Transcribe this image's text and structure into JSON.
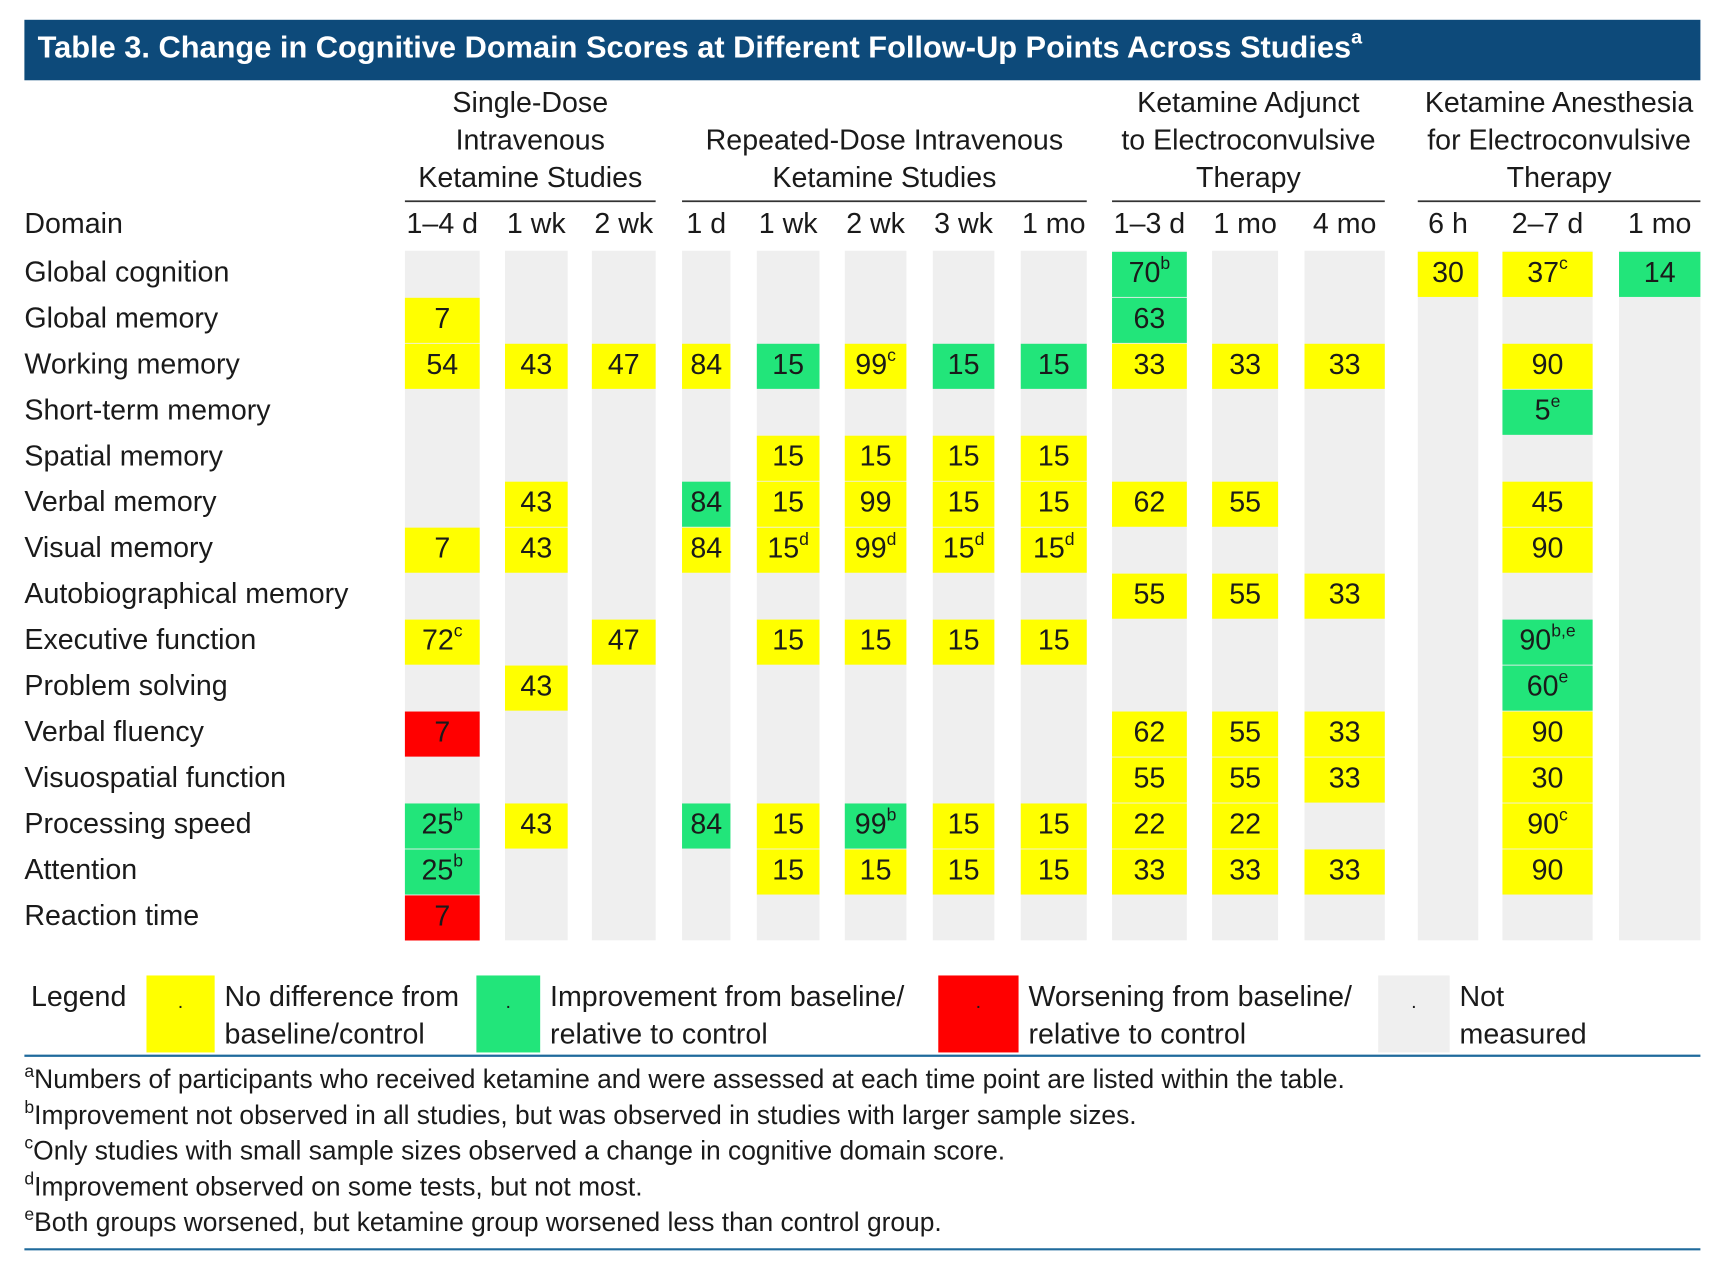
{
  "title": {
    "text": "Table 3. Change in Cognitive Domain Scores at Different Follow-Up Points Across Studies",
    "sup": "a"
  },
  "table": {
    "domain_header": "Domain",
    "groups": [
      {
        "lines": [
          "Single-Dose",
          "Intravenous",
          "Ketamine Studies"
        ],
        "columns": [
          "1–4 d",
          "1 wk",
          "2 wk"
        ]
      },
      {
        "lines": [
          "Repeated-Dose Intravenous",
          "Ketamine Studies"
        ],
        "columns": [
          "1 d",
          "1 wk",
          "2 wk",
          "3 wk",
          "1 mo"
        ]
      },
      {
        "lines": [
          "Ketamine Adjunct",
          "to Electroconvulsive",
          "Therapy"
        ],
        "columns": [
          "1–3 d",
          "1 mo",
          "4 mo"
        ]
      },
      {
        "lines": [
          "Ketamine Anesthesia",
          "for Electroconvulsive",
          "Therapy"
        ],
        "columns": [
          "6 h",
          "2–7 d",
          "1 mo"
        ]
      }
    ],
    "rows": [
      {
        "domain": "Global cognition",
        "cells": [
          null,
          null,
          null,
          null,
          null,
          null,
          null,
          null,
          {
            "value": 70,
            "sup": "b",
            "color": "#22e57a"
          },
          null,
          null,
          {
            "value": 30,
            "color": "#ffff00"
          },
          {
            "value": 37,
            "sup": "c",
            "color": "#ffff00"
          },
          {
            "value": 14,
            "color": "#22e57a"
          }
        ]
      },
      {
        "domain": "Global memory",
        "cells": [
          {
            "value": 7,
            "color": "#ffff00"
          },
          null,
          null,
          null,
          null,
          null,
          null,
          null,
          {
            "value": 63,
            "color": "#22e57a"
          },
          null,
          null,
          null,
          null,
          null
        ]
      },
      {
        "domain": "Working memory",
        "cells": [
          {
            "value": 54,
            "color": "#ffff00"
          },
          {
            "value": 43,
            "color": "#ffff00"
          },
          {
            "value": 47,
            "color": "#ffff00"
          },
          {
            "value": 84,
            "color": "#ffff00"
          },
          {
            "value": 15,
            "color": "#22e57a"
          },
          {
            "value": 99,
            "sup": "c",
            "color": "#ffff00"
          },
          {
            "value": 15,
            "color": "#22e57a"
          },
          {
            "value": 15,
            "color": "#22e57a"
          },
          {
            "value": 33,
            "color": "#ffff00"
          },
          {
            "value": 33,
            "color": "#ffff00"
          },
          {
            "value": 33,
            "color": "#ffff00"
          },
          null,
          {
            "value": 90,
            "color": "#ffff00"
          },
          null
        ]
      },
      {
        "domain": "Short-term memory",
        "cells": [
          null,
          null,
          null,
          null,
          null,
          null,
          null,
          null,
          null,
          null,
          null,
          null,
          {
            "value": 5,
            "sup": "e",
            "color": "#22e57a"
          },
          null
        ]
      },
      {
        "domain": "Spatial memory",
        "cells": [
          null,
          null,
          null,
          null,
          {
            "value": 15,
            "color": "#ffff00"
          },
          {
            "value": 15,
            "color": "#ffff00"
          },
          {
            "value": 15,
            "color": "#ffff00"
          },
          {
            "value": 15,
            "color": "#ffff00"
          },
          null,
          null,
          null,
          null,
          null,
          null
        ]
      },
      {
        "domain": "Verbal memory",
        "cells": [
          null,
          {
            "value": 43,
            "color": "#ffff00"
          },
          null,
          {
            "value": 84,
            "color": "#22e57a"
          },
          {
            "value": 15,
            "color": "#ffff00"
          },
          {
            "value": 99,
            "color": "#ffff00"
          },
          {
            "value": 15,
            "color": "#ffff00"
          },
          {
            "value": 15,
            "color": "#ffff00"
          },
          {
            "value": 62,
            "color": "#ffff00"
          },
          {
            "value": 55,
            "color": "#ffff00"
          },
          null,
          null,
          {
            "value": 45,
            "color": "#ffff00"
          },
          null
        ]
      },
      {
        "domain": "Visual memory",
        "cells": [
          {
            "value": 7,
            "color": "#ffff00"
          },
          {
            "value": 43,
            "color": "#ffff00"
          },
          null,
          {
            "value": 84,
            "color": "#ffff00"
          },
          {
            "value": 15,
            "sup": "d",
            "color": "#ffff00"
          },
          {
            "value": 99,
            "sup": "d",
            "color": "#ffff00"
          },
          {
            "value": 15,
            "sup": "d",
            "color": "#ffff00"
          },
          {
            "value": 15,
            "sup": "d",
            "color": "#ffff00"
          },
          null,
          null,
          null,
          null,
          {
            "value": 90,
            "color": "#ffff00"
          },
          null
        ]
      },
      {
        "domain": "Autobiographical memory",
        "cells": [
          null,
          null,
          null,
          null,
          null,
          null,
          null,
          null,
          {
            "value": 55,
            "color": "#ffff00"
          },
          {
            "value": 55,
            "color": "#ffff00"
          },
          {
            "value": 33,
            "color": "#ffff00"
          },
          null,
          null,
          null
        ]
      },
      {
        "domain": "Executive function",
        "cells": [
          {
            "value": 72,
            "sup": "c",
            "color": "#ffff00"
          },
          null,
          {
            "value": 47,
            "color": "#ffff00"
          },
          null,
          {
            "value": 15,
            "color": "#ffff00"
          },
          {
            "value": 15,
            "color": "#ffff00"
          },
          {
            "value": 15,
            "color": "#ffff00"
          },
          {
            "value": 15,
            "color": "#ffff00"
          },
          null,
          null,
          null,
          null,
          {
            "value": 90,
            "sup": "b,e",
            "color": "#22e57a"
          },
          null
        ]
      },
      {
        "domain": "Problem solving",
        "cells": [
          null,
          {
            "value": 43,
            "color": "#ffff00"
          },
          null,
          null,
          null,
          null,
          null,
          null,
          null,
          null,
          null,
          null,
          {
            "value": 60,
            "sup": "e",
            "color": "#22e57a"
          },
          null
        ]
      },
      {
        "domain": "Verbal fluency",
        "cells": [
          {
            "value": 7,
            "color": "#ff0000"
          },
          null,
          null,
          null,
          null,
          null,
          null,
          null,
          {
            "value": 62,
            "color": "#ffff00"
          },
          {
            "value": 55,
            "color": "#ffff00"
          },
          {
            "value": 33,
            "color": "#ffff00"
          },
          null,
          {
            "value": 90,
            "color": "#ffff00"
          },
          null
        ]
      },
      {
        "domain": "Visuospatial function",
        "cells": [
          null,
          null,
          null,
          null,
          null,
          null,
          null,
          null,
          {
            "value": 55,
            "color": "#ffff00"
          },
          {
            "value": 55,
            "color": "#ffff00"
          },
          {
            "value": 33,
            "color": "#ffff00"
          },
          null,
          {
            "value": 30,
            "color": "#ffff00"
          },
          null
        ]
      },
      {
        "domain": "Processing speed",
        "cells": [
          {
            "value": 25,
            "sup": "b",
            "color": "#22e57a"
          },
          {
            "value": 43,
            "color": "#ffff00"
          },
          null,
          {
            "value": 84,
            "color": "#22e57a"
          },
          {
            "value": 15,
            "color": "#ffff00"
          },
          {
            "value": 99,
            "sup": "b",
            "color": "#22e57a"
          },
          {
            "value": 15,
            "color": "#ffff00"
          },
          {
            "value": 15,
            "color": "#ffff00"
          },
          {
            "value": 22,
            "color": "#ffff00"
          },
          {
            "value": 22,
            "color": "#ffff00"
          },
          null,
          null,
          {
            "value": 90,
            "sup": "c",
            "color": "#ffff00"
          },
          null
        ]
      },
      {
        "domain": "Attention",
        "cells": [
          {
            "value": 25,
            "sup": "b",
            "color": "#22e57a"
          },
          null,
          null,
          null,
          {
            "value": 15,
            "color": "#ffff00"
          },
          {
            "value": 15,
            "color": "#ffff00"
          },
          {
            "value": 15,
            "color": "#ffff00"
          },
          {
            "value": 15,
            "color": "#ffff00"
          },
          {
            "value": 33,
            "color": "#ffff00"
          },
          {
            "value": 33,
            "color": "#ffff00"
          },
          {
            "value": 33,
            "color": "#ffff00"
          },
          null,
          {
            "value": 90,
            "color": "#ffff00"
          },
          null
        ]
      },
      {
        "domain": "Reaction time",
        "cells": [
          {
            "value": 7,
            "color": "#ff0000"
          },
          null,
          null,
          null,
          null,
          null,
          null,
          null,
          null,
          null,
          null,
          null,
          null,
          null
        ]
      }
    ]
  },
  "legend": {
    "label": "Legend",
    "items": [
      {
        "marker": ".",
        "lines": [
          "No difference from",
          "baseline/control"
        ],
        "color": "#ffff00"
      },
      {
        "marker": ".",
        "lines": [
          "Improvement from baseline/",
          "relative to control"
        ],
        "color": "#22e57a"
      },
      {
        "marker": ".",
        "lines": [
          "Worsening from baseline/",
          "relative to control"
        ],
        "color": "#ff0000"
      },
      {
        "marker": ".",
        "lines": [
          "Not",
          "measured"
        ],
        "color": "#efefef"
      }
    ]
  },
  "footnotes": [
    {
      "mark": "a",
      "text": "Numbers of participants who received ketamine and were assessed at each time point are listed within the table."
    },
    {
      "mark": "b",
      "text": "Improvement not observed in all studies, but was observed in studies with larger sample sizes."
    },
    {
      "mark": "c",
      "text": "Only studies with small sample sizes observed a change in cognitive domain score."
    },
    {
      "mark": "d",
      "text": "Improvement observed on some tests, but not most."
    },
    {
      "mark": "e",
      "text": "Both groups worsened, but ketamine group worsened less than control group."
    }
  ]
}
